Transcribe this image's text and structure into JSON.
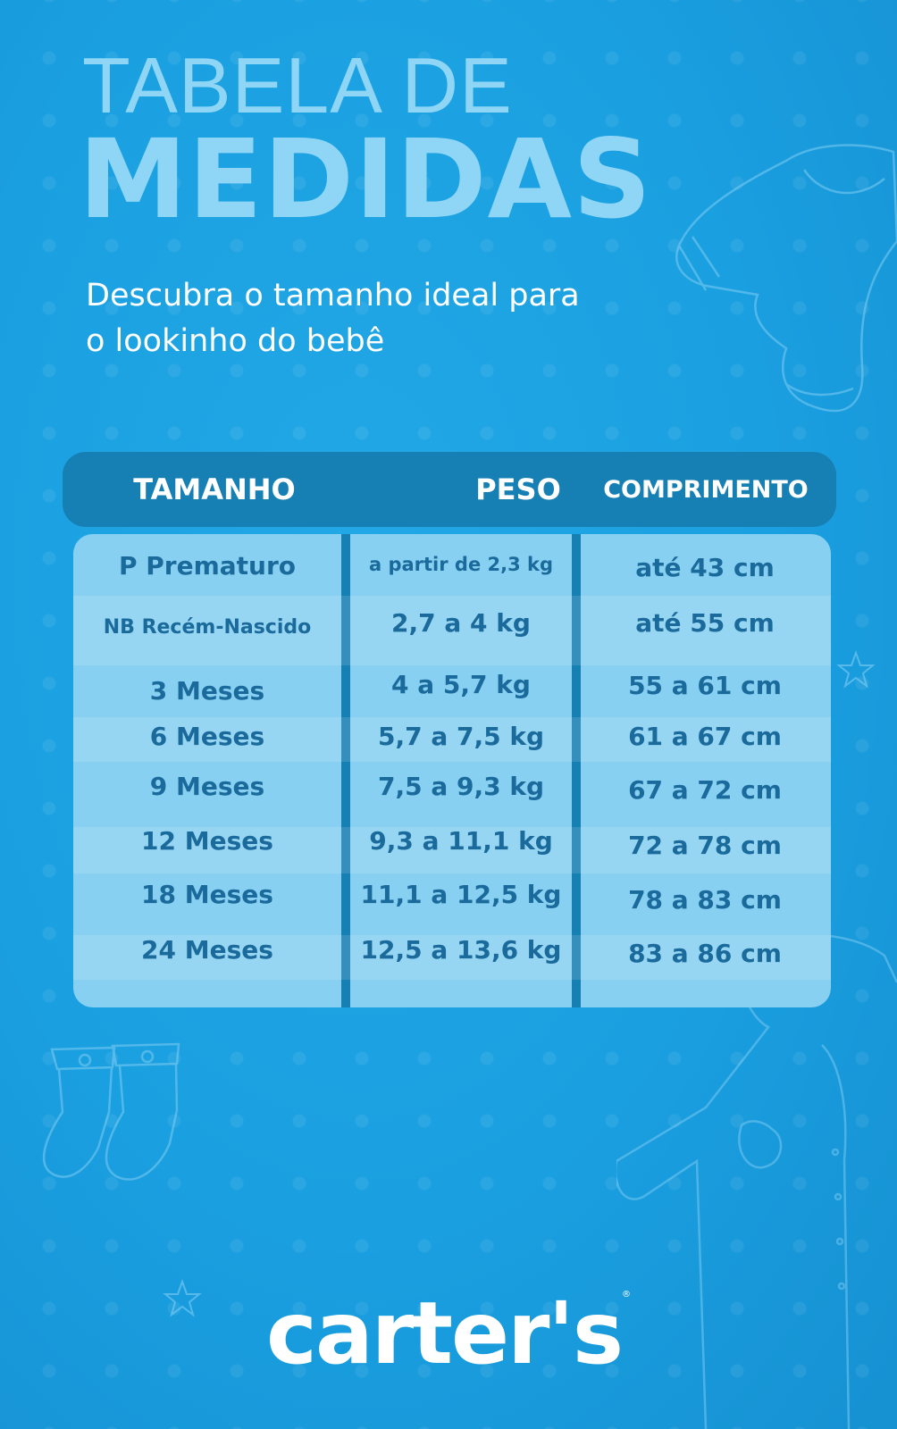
{
  "title": {
    "line1": "TABELA DE",
    "line2": "MEDIDAS"
  },
  "subtitle": {
    "line1": "Descubra o tamanho ideal para",
    "line2": "o lookinho do bebê"
  },
  "table": {
    "headers": {
      "size": "TAMANHO",
      "weight": "PESO",
      "length": "COMPRIMENTO"
    },
    "rows": [
      {
        "size": "P Prematuro",
        "weight": "a partir de 2,3 kg",
        "length": "até 43 cm"
      },
      {
        "size": "NB Recém-Nascido",
        "weight": "2,7 a 4 kg",
        "length": "até 55 cm"
      },
      {
        "size": "3 Meses",
        "weight": "4 a 5,7 kg",
        "length": "55 a 61 cm"
      },
      {
        "size": "6 Meses",
        "weight": "5,7 a 7,5 kg",
        "length": "61 a 67 cm"
      },
      {
        "size": "9 Meses",
        "weight": "7,5 a 9,3 kg",
        "length": "67 a 72 cm"
      },
      {
        "size": "12 Meses",
        "weight": "9,3 a 11,1 kg",
        "length": "72 a 78 cm"
      },
      {
        "size": "18 Meses",
        "weight": "11,1 a 12,5 kg",
        "length": "78 a 83 cm"
      },
      {
        "size": "24 Meses",
        "weight": "12,5 a 13,6 kg",
        "length": "83 a 86 cm"
      }
    ]
  },
  "brand": {
    "logo_text": "carter's",
    "registered_mark": "®"
  },
  "decorations": [
    "baby-bodysuit-icon",
    "socks-icon",
    "baby-romper-icon",
    "star-icon"
  ],
  "colors": {
    "background": "#1a9fe0",
    "title": "#8fd6f6",
    "header": "#167fb4",
    "table_cell": "#88d0f1",
    "cell_text": "#1a6a9c"
  }
}
